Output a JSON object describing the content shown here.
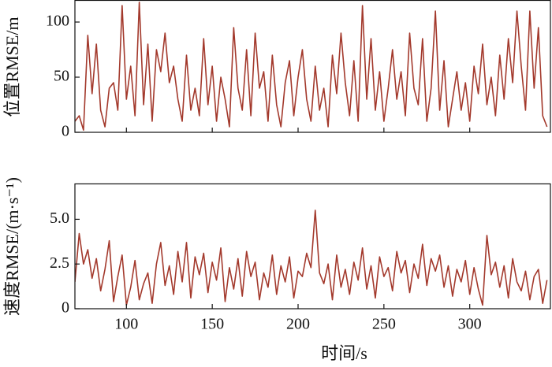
{
  "chart_data": [
    {
      "type": "line",
      "ylabel": "位置RMSE/m",
      "color": "#a3392c",
      "x": [
        70,
        72.5,
        75,
        77.5,
        80,
        82.5,
        85,
        87.5,
        90,
        92.5,
        95,
        97.5,
        100,
        102.5,
        105,
        107.5,
        110,
        112.5,
        115,
        117.5,
        120,
        122.5,
        125,
        127.5,
        130,
        132.5,
        135,
        137.5,
        140,
        142.5,
        145,
        147.5,
        150,
        152.5,
        155,
        157.5,
        160,
        162.5,
        165,
        167.5,
        170,
        172.5,
        175,
        177.5,
        180,
        182.5,
        185,
        187.5,
        190,
        192.5,
        195,
        197.5,
        200,
        202.5,
        205,
        207.5,
        210,
        212.5,
        215,
        217.5,
        220,
        222.5,
        225,
        227.5,
        230,
        232.5,
        235,
        237.5,
        240,
        242.5,
        245,
        247.5,
        250,
        252.5,
        255,
        257.5,
        260,
        262.5,
        265,
        267.5,
        270,
        272.5,
        275,
        277.5,
        280,
        282.5,
        285,
        287.5,
        290,
        292.5,
        295,
        297.5,
        300,
        302.5,
        305,
        307.5,
        310,
        312.5,
        315,
        317.5,
        320,
        322.5,
        325,
        327.5,
        330,
        332.5,
        335,
        337.5,
        340,
        342.5,
        345
      ],
      "values": [
        10,
        15,
        2,
        88,
        35,
        80,
        20,
        5,
        40,
        45,
        20,
        115,
        30,
        60,
        15,
        118,
        25,
        80,
        10,
        75,
        55,
        90,
        45,
        60,
        30,
        10,
        70,
        20,
        40,
        15,
        85,
        25,
        60,
        10,
        50,
        30,
        5,
        95,
        40,
        20,
        75,
        15,
        90,
        40,
        55,
        10,
        70,
        25,
        5,
        45,
        65,
        15,
        50,
        75,
        30,
        10,
        60,
        20,
        40,
        5,
        70,
        35,
        90,
        45,
        15,
        65,
        10,
        115,
        30,
        85,
        20,
        55,
        10,
        40,
        75,
        30,
        55,
        15,
        90,
        40,
        25,
        85,
        10,
        40,
        110,
        20,
        65,
        5,
        30,
        55,
        20,
        45,
        10,
        60,
        35,
        80,
        25,
        50,
        15,
        70,
        30,
        85,
        45,
        110,
        60,
        20,
        110,
        40,
        95,
        15,
        5
      ],
      "xlim": [
        70,
        347
      ],
      "xticks": [
        100,
        150,
        200,
        250,
        300
      ],
      "ylim": [
        0,
        120
      ],
      "yticks": [
        0,
        50,
        100
      ]
    },
    {
      "type": "line",
      "ylabel": "速度RMSE/(m·s⁻¹)",
      "xlabel": "时间/s",
      "color": "#a3392c",
      "x": [
        70,
        72.5,
        75,
        77.5,
        80,
        82.5,
        85,
        87.5,
        90,
        92.5,
        95,
        97.5,
        100,
        102.5,
        105,
        107.5,
        110,
        112.5,
        115,
        117.5,
        120,
        122.5,
        125,
        127.5,
        130,
        132.5,
        135,
        137.5,
        140,
        142.5,
        145,
        147.5,
        150,
        152.5,
        155,
        157.5,
        160,
        162.5,
        165,
        167.5,
        170,
        172.5,
        175,
        177.5,
        180,
        182.5,
        185,
        187.5,
        190,
        192.5,
        195,
        197.5,
        200,
        202.5,
        205,
        207.5,
        210,
        212.5,
        215,
        217.5,
        220,
        222.5,
        225,
        227.5,
        230,
        232.5,
        235,
        237.5,
        240,
        242.5,
        245,
        247.5,
        250,
        252.5,
        255,
        257.5,
        260,
        262.5,
        265,
        267.5,
        270,
        272.5,
        275,
        277.5,
        280,
        282.5,
        285,
        287.5,
        290,
        292.5,
        295,
        297.5,
        300,
        302.5,
        305,
        307.5,
        310,
        312.5,
        315,
        317.5,
        320,
        322.5,
        325,
        327.5,
        330,
        332.5,
        335,
        337.5,
        340,
        342.5,
        345
      ],
      "values": [
        1.5,
        4.2,
        2.5,
        3.3,
        1.7,
        2.8,
        1.0,
        2.2,
        3.8,
        0.4,
        1.8,
        3.0,
        0.2,
        1.2,
        2.7,
        0.5,
        1.4,
        2.0,
        0.3,
        2.5,
        3.7,
        1.3,
        2.4,
        0.8,
        3.2,
        1.5,
        3.7,
        0.6,
        2.9,
        1.9,
        3.1,
        0.9,
        2.6,
        1.6,
        3.4,
        0.4,
        2.3,
        1.1,
        2.8,
        0.7,
        3.2,
        1.8,
        2.6,
        0.5,
        2.0,
        1.2,
        3.0,
        0.8,
        2.4,
        1.5,
        2.9,
        0.6,
        2.1,
        1.8,
        3.1,
        2.3,
        5.5,
        2.0,
        1.4,
        2.5,
        0.5,
        3.0,
        1.2,
        2.2,
        0.8,
        2.6,
        1.6,
        3.4,
        1.1,
        2.4,
        0.6,
        2.9,
        1.8,
        2.3,
        1.0,
        3.2,
        2.0,
        2.7,
        0.9,
        2.5,
        1.7,
        3.6,
        1.3,
        2.8,
        2.1,
        3.0,
        1.2,
        2.4,
        0.7,
        2.2,
        1.5,
        2.7,
        0.8,
        2.3,
        1.1,
        0.2,
        4.1,
        1.9,
        2.6,
        1.2,
        2.4,
        0.6,
        2.8,
        1.5,
        1.0,
        2.1,
        0.5,
        1.8,
        2.2,
        0.3,
        1.6
      ],
      "xlim": [
        70,
        347
      ],
      "xticks": [
        100,
        150,
        200,
        250,
        300
      ],
      "ylim": [
        0,
        7
      ],
      "yticks": [
        0,
        {
          "value": 2.5,
          "label": "2.5"
        },
        {
          "value": 5,
          "label": "5.0"
        }
      ]
    }
  ]
}
